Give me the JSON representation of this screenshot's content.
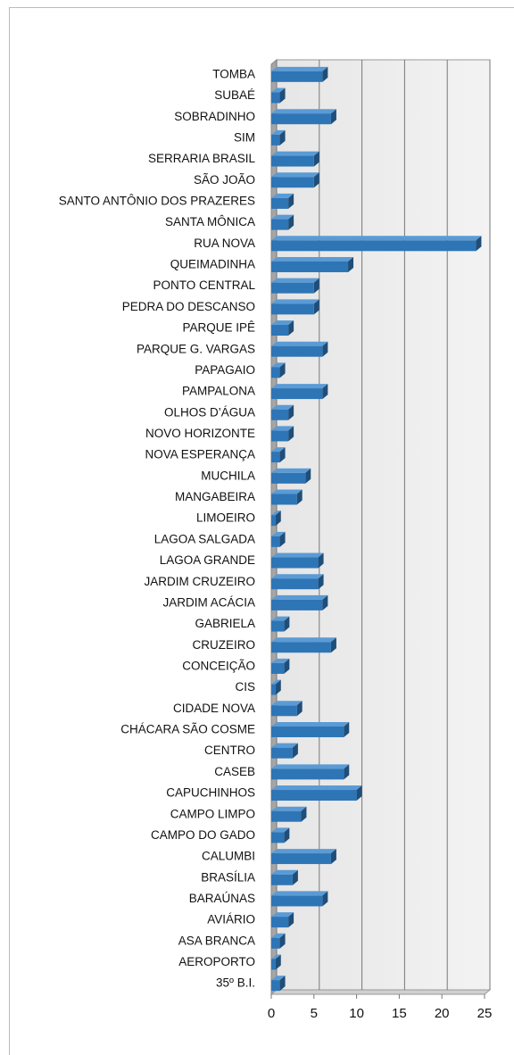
{
  "chart_data": {
    "type": "bar",
    "orientation": "horizontal",
    "categories": [
      "TOMBA",
      "SUBAÉ",
      "SOBRADINHO",
      "SIM",
      "SERRARIA BRASIL",
      "SÃO JOÃO",
      "SANTO ANTÔNIO DOS PRAZERES",
      "SANTA MÔNICA",
      "RUA NOVA",
      "QUEIMADINHA",
      "PONTO CENTRAL",
      "PEDRA DO DESCANSO",
      "PARQUE IPÊ",
      "PARQUE G. VARGAS",
      "PAPAGAIO",
      "PAMPALONA",
      "OLHOS D’ÁGUA",
      "NOVO HORIZONTE",
      "NOVA ESPERANÇA",
      "MUCHILA",
      "MANGABEIRA",
      "LIMOEIRO",
      "LAGOA SALGADA",
      "LAGOA GRANDE",
      "JARDIM CRUZEIRO",
      "JARDIM ACÁCIA",
      "GABRIELA",
      "CRUZEIRO",
      "CONCEIÇÃO",
      "CIS",
      "CIDADE NOVA",
      "CHÁCARA SÃO COSME",
      "CENTRO",
      "CASEB",
      "CAPUCHINHOS",
      "CAMPO LIMPO",
      "CAMPO DO GADO",
      "CALUMBI",
      "BRASÍLIA",
      "BARAÚNAS",
      "AVIÁRIO",
      "ASA BRANCA",
      "AEROPORTO",
      "35º B.I."
    ],
    "values": [
      6,
      1,
      7,
      1,
      5,
      5,
      2,
      2,
      24,
      9,
      5,
      5,
      2,
      6,
      1,
      6,
      2,
      2,
      1,
      4,
      3,
      0.5,
      1,
      5.5,
      5.5,
      6,
      1.5,
      7,
      1.5,
      0.5,
      3,
      8.5,
      2.5,
      8.5,
      10,
      3.5,
      1.5,
      7,
      2.5,
      6,
      2,
      1,
      0.5,
      1
    ],
    "color": "#2e75b6",
    "xlim": [
      0,
      25
    ],
    "xticks": [
      0,
      5,
      10,
      15,
      20,
      25
    ],
    "grid": true
  }
}
